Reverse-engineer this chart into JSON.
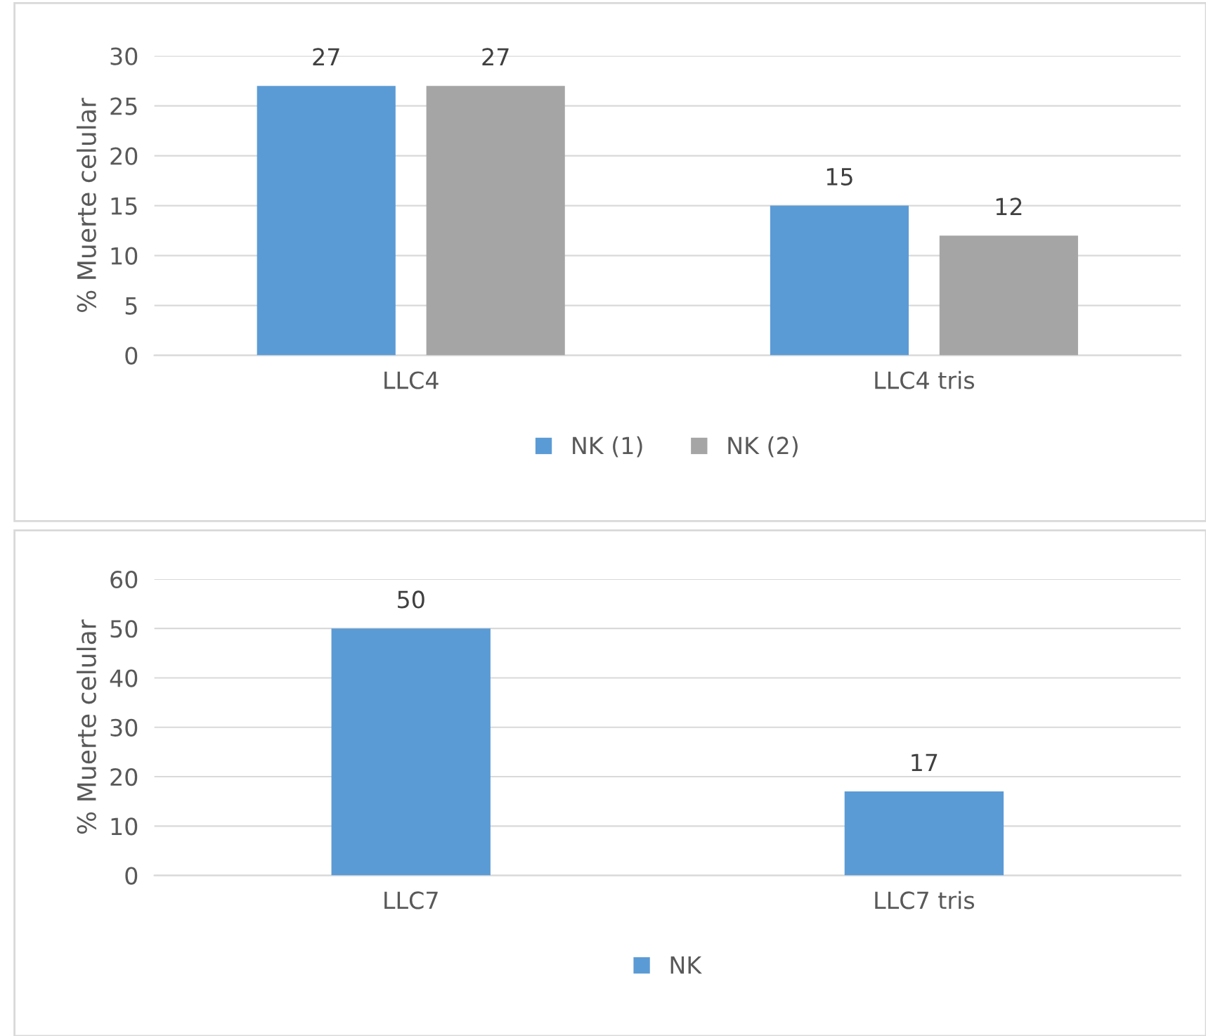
{
  "chart_data": [
    {
      "type": "bar",
      "ylabel": "% Muerte celular",
      "categories": [
        "LLC4",
        "LLC4 tris"
      ],
      "series": [
        {
          "name": "NK (1)",
          "color": "#5b9bd5",
          "values": [
            27,
            15
          ]
        },
        {
          "name": "NK (2)",
          "color": "#a5a5a5",
          "values": [
            27,
            12
          ]
        }
      ],
      "ylim": [
        0,
        30
      ],
      "yticks": [
        0,
        5,
        10,
        15,
        20,
        25,
        30
      ],
      "grid": "y",
      "legend": "bottom",
      "data_labels": true
    },
    {
      "type": "bar",
      "ylabel": "% Muerte celular",
      "categories": [
        "LLC7",
        "LLC7 tris"
      ],
      "series": [
        {
          "name": "NK",
          "color": "#5b9bd5",
          "values": [
            50,
            17
          ]
        }
      ],
      "ylim": [
        0,
        60
      ],
      "yticks": [
        0,
        10,
        20,
        30,
        40,
        50,
        60
      ],
      "grid": "y",
      "legend": "bottom",
      "data_labels": true
    }
  ]
}
